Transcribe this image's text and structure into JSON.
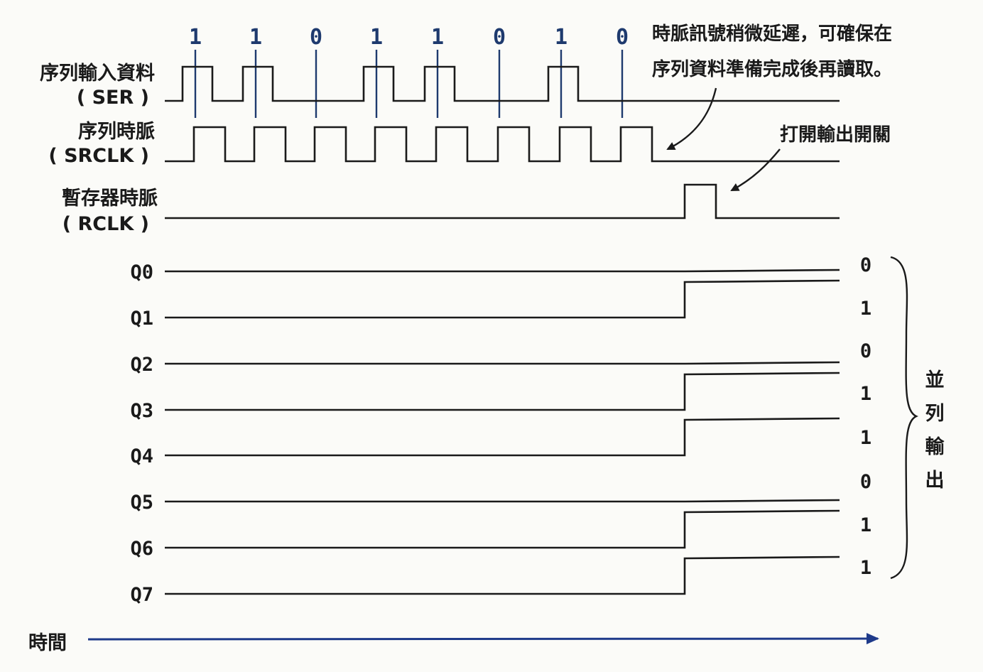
{
  "signals": {
    "ser": {
      "name": "序列輸入資料",
      "abbr": "( SER )"
    },
    "srclk": {
      "name": "序列時脈",
      "abbr": "( SRCLK )"
    },
    "rclk": {
      "name": "暫存器時脈",
      "abbr": "( RCLK )"
    }
  },
  "serial_bits": [
    "1",
    "1",
    "0",
    "1",
    "1",
    "0",
    "1",
    "0"
  ],
  "notes": {
    "delay_line1": "時脈訊號稍微延遲，可確保在",
    "delay_line2": "序列資料準備完成後再讀取。",
    "output_enable": "打開輸出開關"
  },
  "outputs": [
    {
      "name": "Q0",
      "value": "0"
    },
    {
      "name": "Q1",
      "value": "1"
    },
    {
      "name": "Q2",
      "value": "0"
    },
    {
      "name": "Q3",
      "value": "1"
    },
    {
      "name": "Q4",
      "value": "1"
    },
    {
      "name": "Q5",
      "value": "0"
    },
    {
      "name": "Q6",
      "value": "1"
    },
    {
      "name": "Q7",
      "value": "1"
    }
  ],
  "parallel_label": [
    "並",
    "列",
    "輸",
    "出"
  ],
  "time_label": "時間",
  "colors": {
    "ink": "#1a1a1a",
    "accent": "#1e3a6e",
    "axis": "#1e3a8a"
  }
}
